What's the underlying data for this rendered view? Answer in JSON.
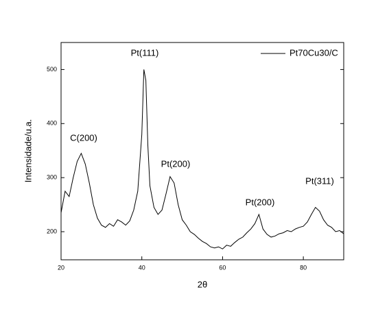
{
  "chart_data": {
    "type": "line",
    "x_label": "2θ",
    "y_label": "Intensidade/u.a.",
    "x": [
      20,
      21,
      22,
      23,
      24,
      25,
      26,
      27,
      28,
      29,
      30,
      31,
      32,
      33,
      34,
      35,
      36,
      37,
      38,
      39,
      40,
      40.5,
      41,
      41.5,
      42,
      43,
      44,
      45,
      46,
      47,
      48,
      49,
      50,
      51,
      52,
      53,
      54,
      55,
      56,
      57,
      58,
      59,
      60,
      61,
      62,
      63,
      64,
      65,
      66,
      67,
      68,
      69,
      70,
      71,
      72,
      73,
      74,
      75,
      76,
      77,
      78,
      79,
      80,
      81,
      82,
      83,
      84,
      85,
      86,
      87,
      88,
      89,
      90
    ],
    "series": [
      {
        "name": "Pt70Cu30/C",
        "color": "#000000",
        "values": [
          235,
          275,
          265,
          300,
          330,
          345,
          325,
          290,
          250,
          225,
          212,
          208,
          215,
          210,
          222,
          218,
          212,
          220,
          240,
          275,
          380,
          500,
          480,
          360,
          285,
          245,
          232,
          240,
          270,
          302,
          290,
          250,
          222,
          212,
          200,
          195,
          188,
          182,
          178,
          172,
          170,
          172,
          168,
          175,
          173,
          180,
          186,
          190,
          198,
          205,
          215,
          232,
          205,
          195,
          190,
          192,
          196,
          198,
          202,
          200,
          205,
          208,
          210,
          218,
          232,
          245,
          238,
          222,
          212,
          208,
          200,
          202,
          196
        ]
      }
    ],
    "xlim": [
      20,
      90
    ],
    "xticks": [
      20,
      40,
      60,
      80
    ],
    "ylim": [
      148,
      550
    ],
    "yticks": [
      200,
      300,
      400,
      500
    ],
    "annotations": [
      "Pt(111)",
      "C(200)",
      "Pt(200)",
      "Pt(200)",
      "Pt(311)"
    ],
    "legend": "upper right"
  }
}
